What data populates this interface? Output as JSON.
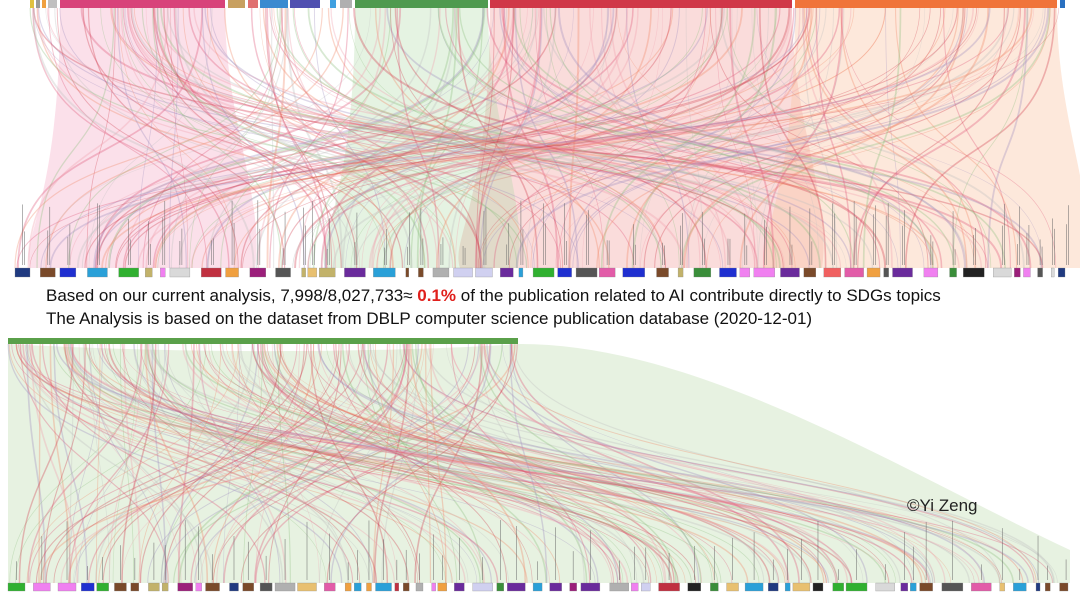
{
  "caption": {
    "line1": {
      "before": "Based on our current analysis, 7,998/8,027,733≈ ",
      "highlight": "0.1%",
      "after": " of the publication related to AI contribute directly to SDGs topics"
    },
    "line2": "The Analysis is based on the dataset from DBLP computer science publication database (2020-12-01)"
  },
  "credit": "©Yi Zeng"
}
